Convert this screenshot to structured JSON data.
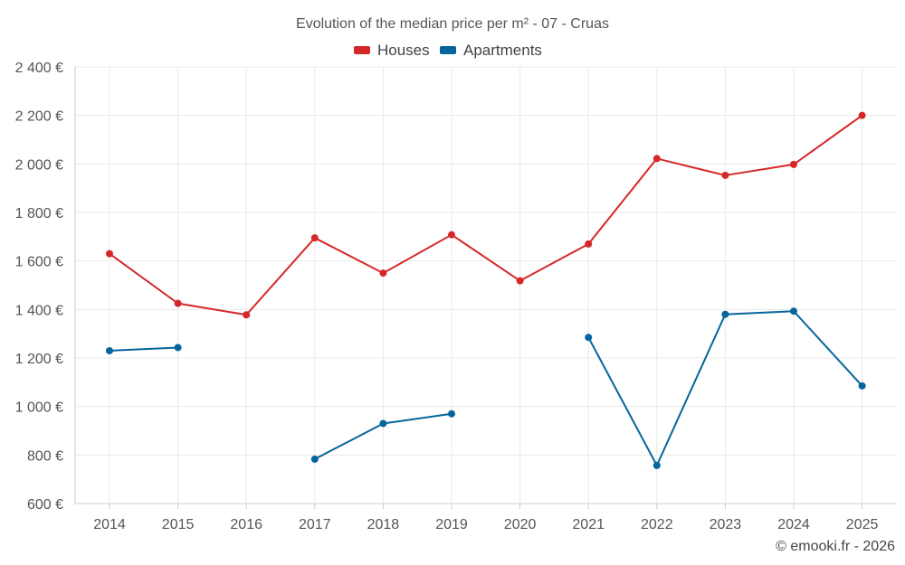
{
  "chart_data": {
    "type": "line",
    "title": "Evolution of the median price per m² - 07 - Cruas",
    "categories": [
      "2014",
      "2015",
      "2016",
      "2017",
      "2018",
      "2019",
      "2020",
      "2021",
      "2022",
      "2023",
      "2024",
      "2025"
    ],
    "y_ticks": [
      600,
      800,
      1000,
      1200,
      1400,
      1600,
      1800,
      2000,
      2200,
      2400
    ],
    "y_tick_labels": [
      "600 €",
      "800 €",
      "1 000 €",
      "1 200 €",
      "1 400 €",
      "1 600 €",
      "1 800 €",
      "2 000 €",
      "2 200 €",
      "2 400 €"
    ],
    "ylim": [
      600,
      2400
    ],
    "grid": true,
    "legend_position": "top-center",
    "series": [
      {
        "name": "Houses",
        "color": "#d62728",
        "values": [
          1630,
          1425,
          1378,
          1695,
          1550,
          1708,
          1518,
          1670,
          2022,
          1953,
          1998,
          2200
        ]
      },
      {
        "name": "Apartments",
        "color": "#05659c",
        "values": [
          1230,
          1243,
          null,
          783,
          930,
          970,
          null,
          1285,
          757,
          1380,
          1393,
          1085
        ]
      }
    ],
    "credit": "© emooki.fr - 2026"
  }
}
